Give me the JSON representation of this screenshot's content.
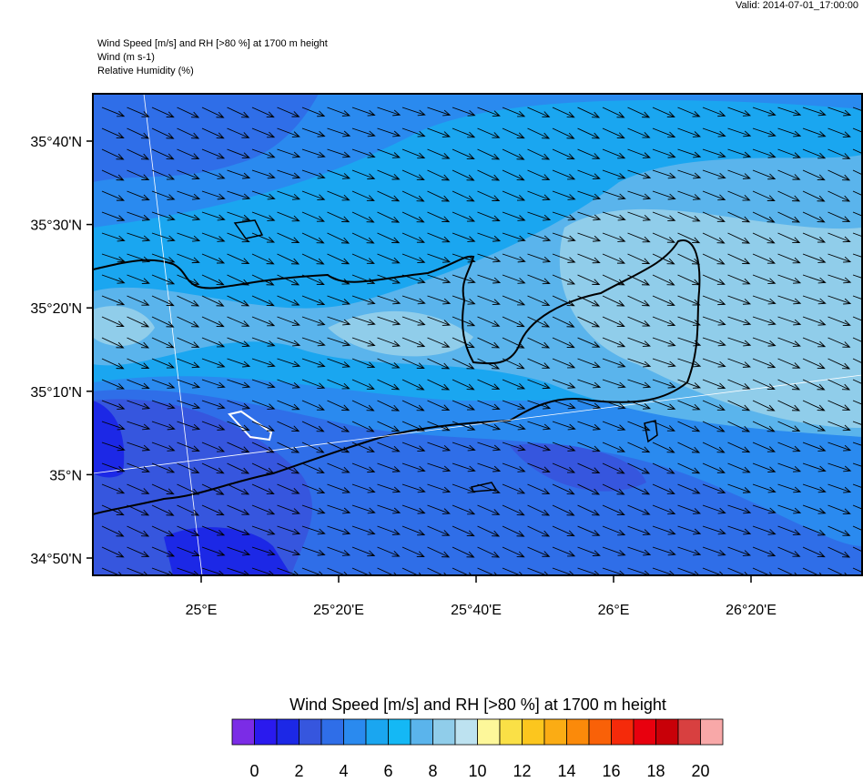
{
  "valid": "Valid: 2014-07-01_17:00:00",
  "header": [
    "Wind Speed [m/s] and RH [>80 %] at 1700 m height",
    "Wind   (m s-1)",
    "Relative Humidity   (%)"
  ],
  "map": {
    "lat_labels": [
      "35°40'N",
      "35°30'N",
      "35°20'N",
      "35°10'N",
      "35°N",
      "34°50'N"
    ],
    "lon_labels": [
      "25°E",
      "25°20'E",
      "25°40'E",
      "26°E",
      "26°20'E"
    ]
  },
  "colorbar": {
    "title": "Wind Speed [m/s] and RH [>80 %] at 1700 m height",
    "colors": [
      "#7b2ce6",
      "#2a1aee",
      "#1c28e6",
      "#3656de",
      "#2f6ee8",
      "#2a8aef",
      "#1aa6f0",
      "#14b8f5",
      "#5ab4ec",
      "#90cdea",
      "#bde2f0",
      "#fdf79a",
      "#fae046",
      "#fcc61e",
      "#fbac14",
      "#fb8a0a",
      "#f96108",
      "#f52a0a",
      "#e8000e",
      "#c80008",
      "#d84040",
      "#f8a8a8"
    ],
    "labels": [
      0,
      2,
      4,
      6,
      8,
      10,
      12,
      14,
      16,
      18,
      20
    ]
  }
}
